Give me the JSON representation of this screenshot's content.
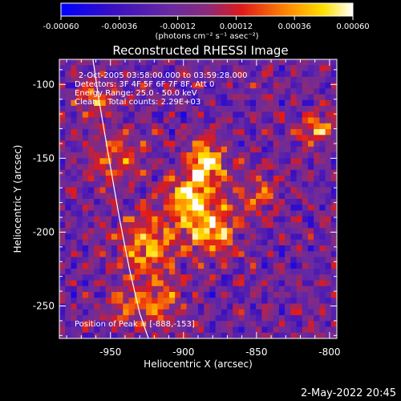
{
  "colorbar": {
    "ticks": [
      "-0.00060",
      "-0.00036",
      "-0.00012",
      "0.00012",
      "0.00036",
      "0.00060"
    ],
    "tick_values": [
      -0.0006,
      -0.00036,
      -0.00012,
      0.00012,
      0.00036,
      0.0006
    ],
    "range": [
      -0.0006,
      0.0006
    ],
    "units": "(photons cm⁻² s⁻¹ asec⁻²)",
    "colormap": [
      "#0000ff",
      "#5a1a9a",
      "#8a2a8a",
      "#e01a1a",
      "#ff8c00",
      "#ffe000",
      "#ffffff"
    ]
  },
  "chart_data": {
    "type": "heatmap",
    "title": "Reconstructed RHESSI Image",
    "xlabel": "Heliocentric X (arcsec)",
    "ylabel": "Heliocentric Y (arcsec)",
    "xlim": [
      -985,
      -795
    ],
    "ylim": [
      -272,
      -83
    ],
    "xticks": [
      -950,
      -900,
      -850,
      -800
    ],
    "xtick_labels": [
      "-950",
      "-900",
      "-850",
      "-800"
    ],
    "yticks": [
      -100,
      -150,
      -200,
      -250
    ],
    "ytick_labels": [
      "-100",
      "-150",
      "-200",
      "-250"
    ],
    "annotations": [
      "2-Oct-2005 03:58:00.000 to 03:59:28.000",
      "Detectors: 3F 4F 5F 6F 7F 8F, Att 0",
      "Energy Range: 25.0 - 50.0 keV",
      "Clean    Total counts: 2.29E+03"
    ],
    "peak_label": "Position of Peak = [-888,-153]",
    "peak": [
      -888,
      -153
    ],
    "limb_curve": {
      "x": [
        -962,
        -958,
        -951,
        -944,
        -937,
        -930,
        -924
      ],
      "y": [
        -83,
        -110,
        -150,
        -190,
        -225,
        -255,
        -272
      ]
    },
    "bright_sources": [
      {
        "x": -884,
        "y": -152,
        "sigma": 9,
        "amp": 1.0
      },
      {
        "x": -895,
        "y": -178,
        "sigma": 12,
        "amp": 0.85
      },
      {
        "x": -880,
        "y": -200,
        "sigma": 12,
        "amp": 0.75
      },
      {
        "x": -925,
        "y": -210,
        "sigma": 14,
        "amp": 0.7
      },
      {
        "x": -945,
        "y": -150,
        "sigma": 12,
        "amp": 0.55
      },
      {
        "x": -960,
        "y": -110,
        "sigma": 8,
        "amp": 0.55
      },
      {
        "x": -808,
        "y": -130,
        "sigma": 8,
        "amp": 0.7
      },
      {
        "x": -915,
        "y": -248,
        "sigma": 10,
        "amp": 0.55
      },
      {
        "x": -850,
        "y": -175,
        "sigma": 10,
        "amp": 0.5
      },
      {
        "x": -940,
        "y": -250,
        "sigma": 10,
        "amp": 0.45
      }
    ]
  },
  "footer": {
    "date": "2-May-2022 20:45"
  }
}
